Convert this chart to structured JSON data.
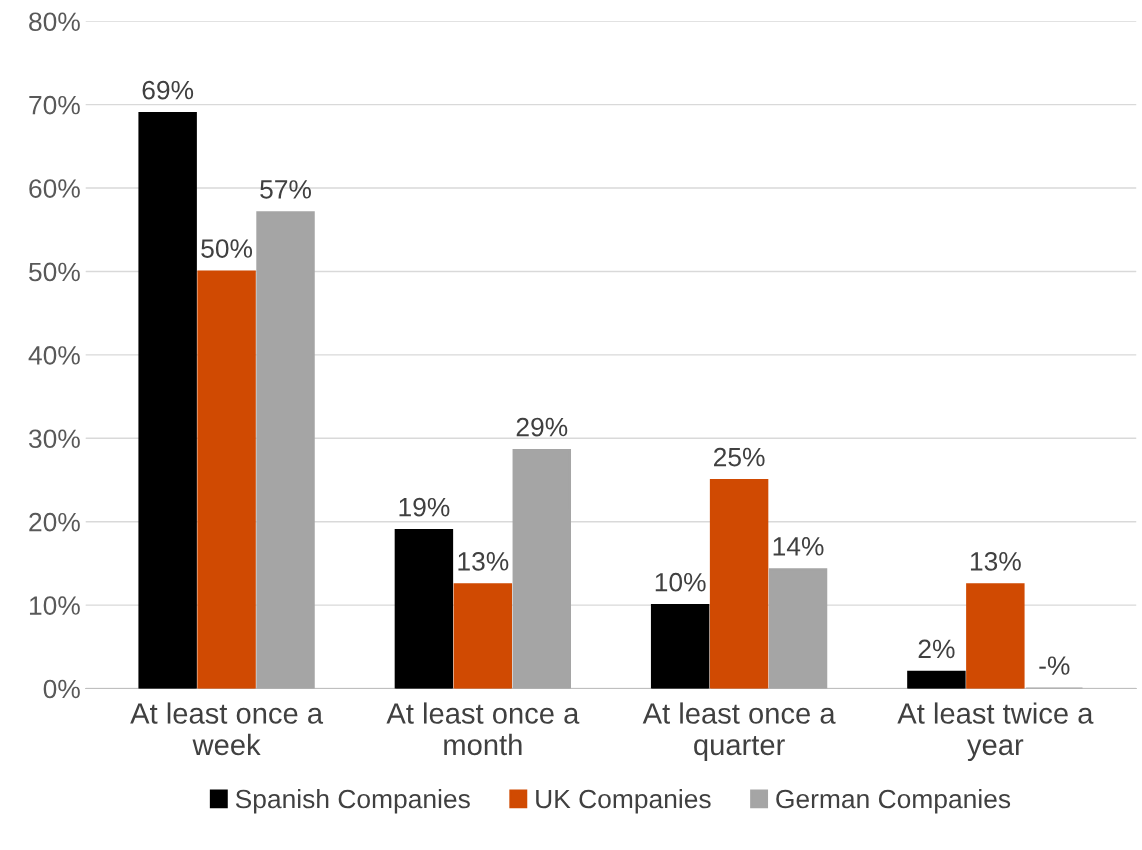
{
  "chart_data": {
    "type": "bar",
    "categories": [
      "At least once a week",
      "At least once a month",
      "At least once a quarter",
      "At least twice a year"
    ],
    "series": [
      {
        "name": "Spanish Companies",
        "color": "#000000",
        "values": [
          69,
          19,
          10,
          2
        ],
        "value_labels": [
          "69%",
          "19%",
          "10%",
          "2%"
        ]
      },
      {
        "name": "UK Companies",
        "color": "#d04a02",
        "values": [
          50,
          12.5,
          25,
          12.5
        ],
        "value_labels": [
          "50%",
          "13%",
          "25%",
          "13%"
        ]
      },
      {
        "name": "German Companies",
        "color": "#a5a5a5",
        "values": [
          57.1,
          28.6,
          14.3,
          0
        ],
        "value_labels": [
          "57%",
          "29%",
          "14%",
          "-%"
        ]
      }
    ],
    "ylim": [
      0,
      80
    ],
    "yticks": [
      {
        "value": 0,
        "label": "0%"
      },
      {
        "value": 10,
        "label": "10%"
      },
      {
        "value": 20,
        "label": "20%"
      },
      {
        "value": 30,
        "label": "30%"
      },
      {
        "value": 40,
        "label": "40%"
      },
      {
        "value": 50,
        "label": "50%"
      },
      {
        "value": 60,
        "label": "60%"
      },
      {
        "value": 70,
        "label": "70%"
      },
      {
        "value": 80,
        "label": "80%"
      }
    ],
    "grid": "y",
    "legend": "bottom"
  }
}
